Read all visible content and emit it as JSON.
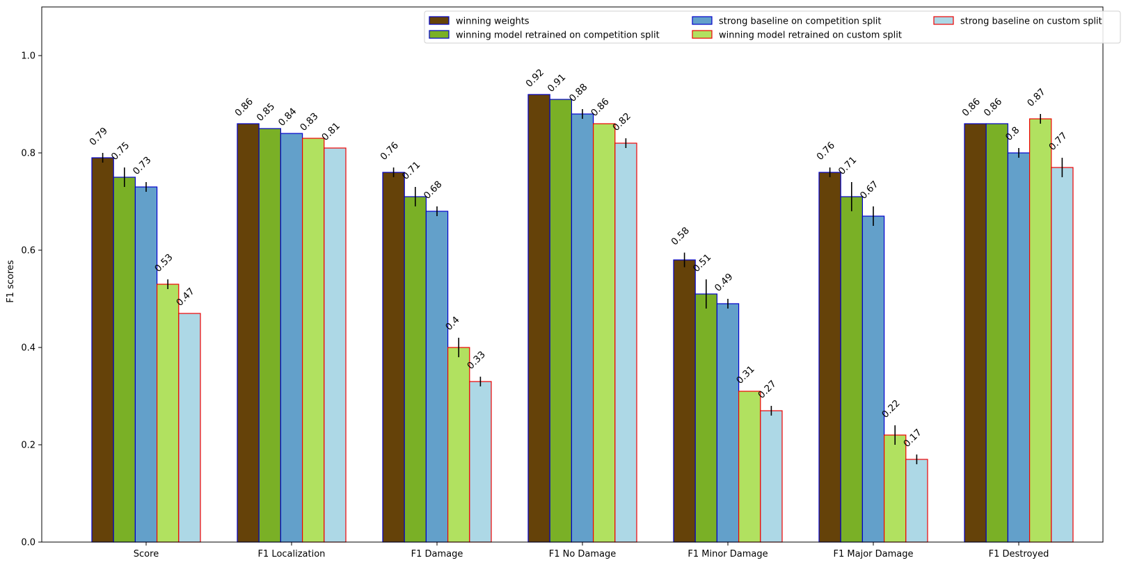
{
  "chart_data": {
    "type": "bar",
    "title": "",
    "xlabel": "",
    "ylabel": "F1 scores",
    "ylim": [
      0,
      1.1
    ],
    "yticks": [
      "0.0",
      "0.2",
      "0.4",
      "0.6",
      "0.8",
      "1.0"
    ],
    "grid": false,
    "legend_position": "top-right",
    "categories": [
      "Score",
      "F1 Localization",
      "F1 Damage",
      "F1 No Damage",
      "F1 Minor Damage",
      "F1 Major Damage",
      "F1 Destroyed"
    ],
    "series": [
      {
        "name": "winning weights",
        "fill": "#654209",
        "edge": "#0000cc",
        "values": [
          0.79,
          0.86,
          0.76,
          0.92,
          0.58,
          0.76,
          0.86
        ],
        "labels": [
          "0.79",
          "0.86",
          "0.76",
          "0.92",
          "0.58",
          "0.76",
          "0.86"
        ],
        "errors": [
          0.01,
          0,
          0.01,
          0,
          0.015,
          0.01,
          0
        ]
      },
      {
        "name": "winning model retrained on competition split",
        "fill": "#7ab026",
        "edge": "#0000cc",
        "values": [
          0.75,
          0.85,
          0.71,
          0.91,
          0.51,
          0.71,
          0.86
        ],
        "labels": [
          "0.75",
          "0.85",
          "0.71",
          "0.91",
          "0.51",
          "0.71",
          "0.86"
        ],
        "errors": [
          0.02,
          0,
          0.02,
          0,
          0.03,
          0.03,
          0
        ]
      },
      {
        "name": "strong baseline on competition split",
        "fill": "#63a0ca",
        "edge": "#0000cc",
        "values": [
          0.73,
          0.84,
          0.68,
          0.88,
          0.49,
          0.67,
          0.8
        ],
        "labels": [
          "0.73",
          "0.84",
          "0.68",
          "0.88",
          "0.49",
          "0.67",
          "0.8"
        ],
        "errors": [
          0.01,
          0,
          0.01,
          0.01,
          0.01,
          0.02,
          0.01
        ]
      },
      {
        "name": "winning model retrained on custom split",
        "fill": "#b1e160",
        "edge": "#ee0000",
        "values": [
          0.53,
          0.83,
          0.4,
          0.86,
          0.31,
          0.22,
          0.87
        ],
        "labels": [
          "0.53",
          "0.83",
          "0.4",
          "0.86",
          "0.31",
          "0.22",
          "0.87"
        ],
        "errors": [
          0.01,
          0,
          0.02,
          0,
          0,
          0.02,
          0.01
        ]
      },
      {
        "name": "strong baseline on custom split",
        "fill": "#add8e6",
        "edge": "#ee0000",
        "values": [
          0.47,
          0.81,
          0.33,
          0.82,
          0.27,
          0.17,
          0.77
        ],
        "labels": [
          "0.47",
          "0.81",
          "0.33",
          "0.82",
          "0.27",
          "0.17",
          "0.77"
        ],
        "errors": [
          0,
          0,
          0.01,
          0.01,
          0.01,
          0.01,
          0.02
        ]
      }
    ]
  }
}
